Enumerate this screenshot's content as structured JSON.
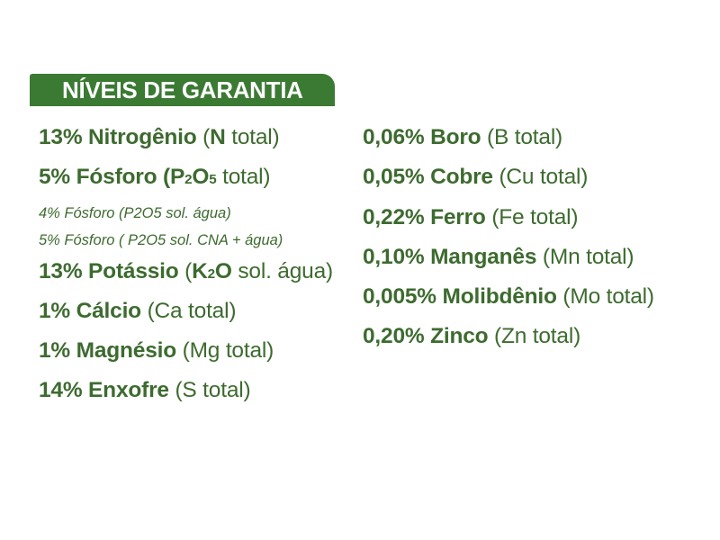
{
  "header": {
    "title": "NÍVEIS DE GARANTIA"
  },
  "colors": {
    "header_bg": "#3b7a33",
    "text": "#3d6b2f"
  },
  "left_column": [
    {
      "style": "main",
      "segments": [
        {
          "t": "13% Nitrogênio ",
          "w": "b"
        },
        {
          "t": "(",
          "w": "n"
        },
        {
          "t": "N",
          "w": "b"
        },
        {
          "t": " total)",
          "w": "n"
        }
      ]
    },
    {
      "style": "main",
      "segments": [
        {
          "t": "5% Fósforo (",
          "w": "b"
        },
        {
          "t": "P",
          "w": "b"
        },
        {
          "t": "2",
          "w": "sub"
        },
        {
          "t": "O",
          "w": "b"
        },
        {
          "t": "5",
          "w": "sub"
        },
        {
          "t": " total)",
          "w": "n"
        }
      ]
    },
    {
      "style": "small",
      "segments": [
        {
          "t": "4% Fósforo (P2O5 sol. água)",
          "w": "n"
        }
      ]
    },
    {
      "style": "small",
      "segments": [
        {
          "t": "5% Fósforo ( P2O5 sol. CNA + água)",
          "w": "n"
        }
      ]
    },
    {
      "style": "main",
      "segments": [
        {
          "t": "13% Potássio ",
          "w": "b"
        },
        {
          "t": "(",
          "w": "n"
        },
        {
          "t": "K",
          "w": "b"
        },
        {
          "t": "2",
          "w": "sub"
        },
        {
          "t": "O",
          "w": "b"
        },
        {
          "t": " sol. água)",
          "w": "n"
        }
      ]
    },
    {
      "style": "main",
      "segments": [
        {
          "t": "1% Cálcio ",
          "w": "b"
        },
        {
          "t": "(Ca total)",
          "w": "n"
        }
      ]
    },
    {
      "style": "main",
      "segments": [
        {
          "t": "1% Magnésio ",
          "w": "b"
        },
        {
          "t": "(Mg total)",
          "w": "n"
        }
      ]
    },
    {
      "style": "main",
      "segments": [
        {
          "t": "14% Enxofre ",
          "w": "b"
        },
        {
          "t": "(S total)",
          "w": "n"
        }
      ]
    }
  ],
  "right_column": [
    {
      "style": "main",
      "segments": [
        {
          "t": "0,06% Boro ",
          "w": "b"
        },
        {
          "t": "(B total)",
          "w": "n"
        }
      ]
    },
    {
      "style": "main",
      "segments": [
        {
          "t": "0,05% Cobre ",
          "w": "b"
        },
        {
          "t": "(Cu total)",
          "w": "n"
        }
      ]
    },
    {
      "style": "main",
      "segments": [
        {
          "t": "0,22% Ferro ",
          "w": "b"
        },
        {
          "t": "(Fe total)",
          "w": "n"
        }
      ]
    },
    {
      "style": "main",
      "segments": [
        {
          "t": "0,10% Manganês ",
          "w": "b"
        },
        {
          "t": "(Mn total)",
          "w": "n"
        }
      ]
    },
    {
      "style": "main",
      "segments": [
        {
          "t": "0,005% Molibdênio ",
          "w": "b"
        },
        {
          "t": "(Mo total)",
          "w": "n"
        }
      ]
    },
    {
      "style": "main",
      "segments": [
        {
          "t": "0,20% Zinco ",
          "w": "b"
        },
        {
          "t": "(Zn total)",
          "w": "n"
        }
      ]
    }
  ]
}
